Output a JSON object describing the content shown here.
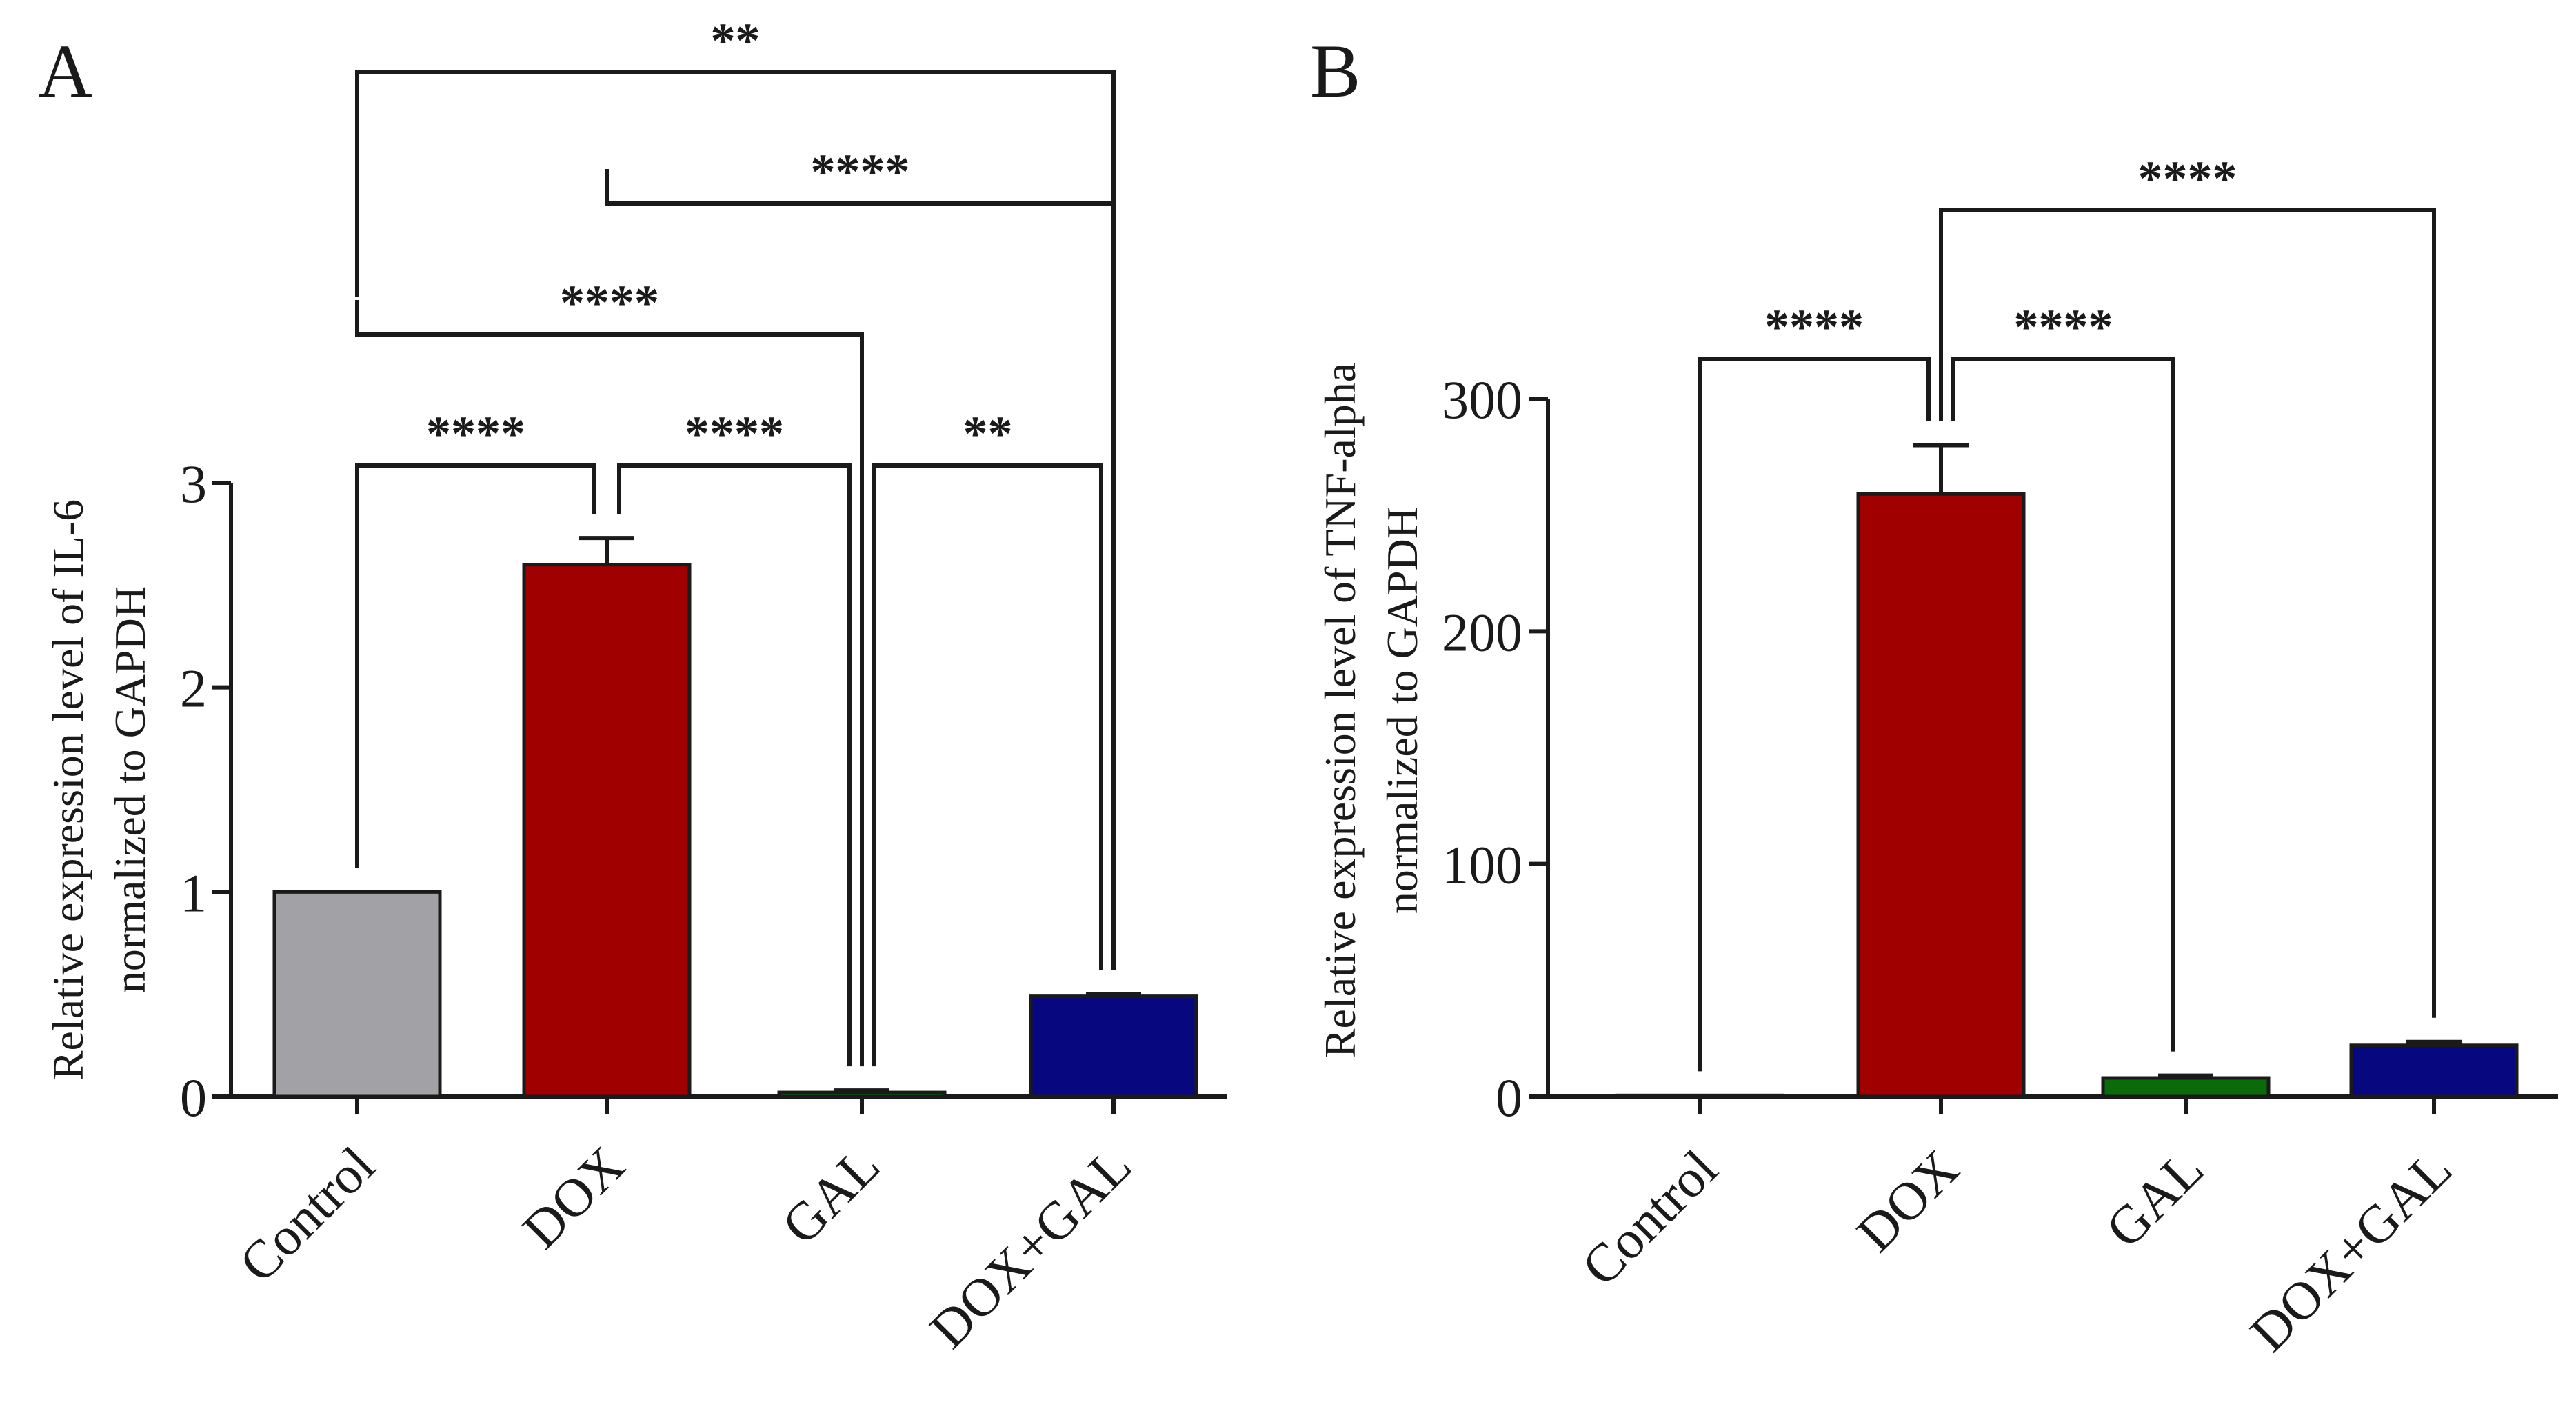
{
  "chart_data": [
    {
      "type": "bar",
      "panel": "A",
      "categories": [
        "Control",
        "DOX",
        "GAL",
        "DOX+GAL"
      ],
      "values": [
        1.0,
        2.6,
        0.02,
        0.49
      ],
      "errors": [
        0,
        0.13,
        0.01,
        0.01
      ],
      "colors": [
        "#a2a2a6",
        "#a00000",
        "#0b6b0b",
        "#07077f"
      ],
      "ylabel": "Relative expression level of IL-6 normalized to GAPDH",
      "ylabel_lines": [
        "Relative expression level of IL-6",
        "normalized to GAPDH"
      ],
      "ylim": [
        0,
        3
      ],
      "yticks": [
        0,
        1,
        2,
        3
      ],
      "significance": [
        {
          "from": 0,
          "to": 1,
          "label": "****",
          "level": 0
        },
        {
          "from": 1,
          "to": 2,
          "label": "****",
          "level": 0
        },
        {
          "from": 2,
          "to": 3,
          "label": "**",
          "level": 0
        },
        {
          "from": 0,
          "to": 2,
          "label": "****",
          "level": 1
        },
        {
          "from": 1,
          "to": 3,
          "label": "****",
          "level": 2
        },
        {
          "from": 0,
          "to": 3,
          "label": "**",
          "level": 3
        }
      ]
    },
    {
      "type": "bar",
      "panel": "B",
      "categories": [
        "Control",
        "DOX",
        "GAL",
        "DOX+GAL"
      ],
      "values": [
        0.5,
        259,
        8,
        22
      ],
      "errors": [
        0,
        21,
        1,
        1.5
      ],
      "colors": [
        "#a2a2a6",
        "#a00000",
        "#0b6b0b",
        "#07077f"
      ],
      "ylabel": "Relative expression level of TNF-alpha normalized to GAPDH",
      "ylabel_lines": [
        "Relative expression level of TNF-alpha",
        "normalized to GAPDH"
      ],
      "ylim": [
        0,
        300
      ],
      "yticks": [
        0,
        100,
        200,
        300
      ],
      "significance": [
        {
          "from": 0,
          "to": 1,
          "label": "****",
          "level": 0
        },
        {
          "from": 1,
          "to": 2,
          "label": "****",
          "level": 0
        },
        {
          "from": 1,
          "to": 3,
          "label": "****",
          "level": 1
        }
      ]
    }
  ]
}
